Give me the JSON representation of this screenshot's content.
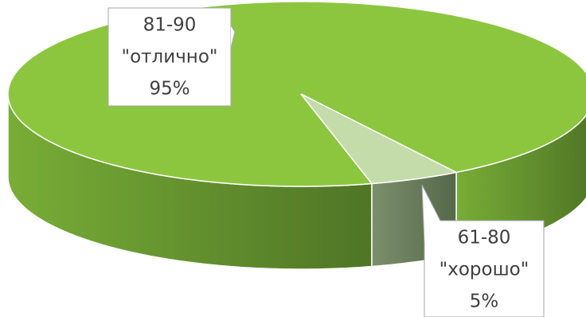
{
  "chart_data": {
    "type": "pie3d",
    "categories": [
      [
        "81-90",
        "\"отлично\""
      ],
      [
        "61-80",
        "\"хорошо\""
      ]
    ],
    "values": [
      95,
      5
    ],
    "value_labels": [
      "95%",
      "5%"
    ],
    "colors": [
      "#8cc63f",
      "#c3dcaa"
    ],
    "side_colors": [
      [
        "#78ad36",
        "#4f7526"
      ],
      [
        "#7b8f6c",
        "#56684a"
      ]
    ]
  }
}
